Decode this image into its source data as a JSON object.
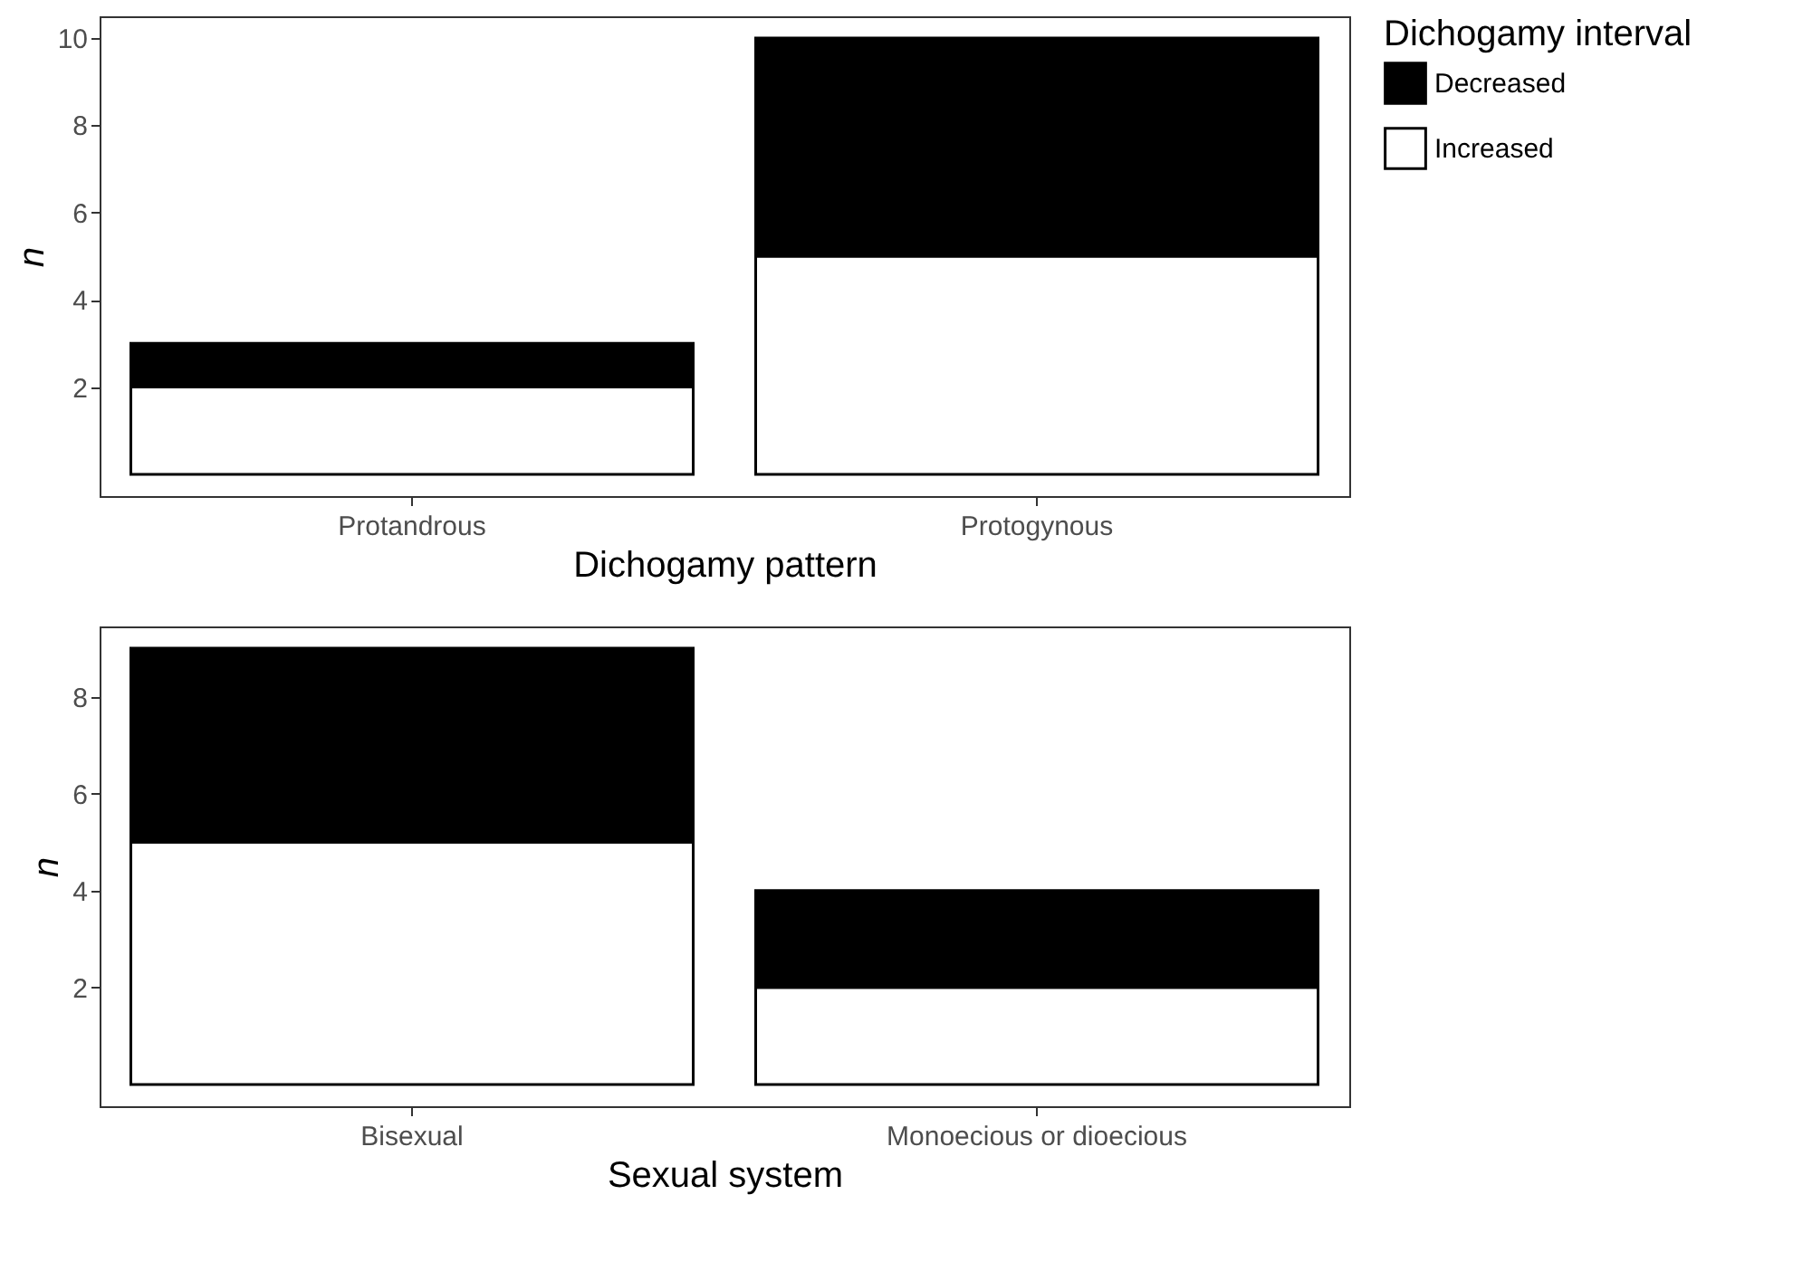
{
  "chart_data": [
    {
      "type": "bar",
      "xlabel": "Dichogamy pattern",
      "ylabel": "n",
      "legend_title": "Dichogamy interval",
      "categories": [
        "Protandrous",
        "Protogynous"
      ],
      "stacked": true,
      "series": [
        {
          "name": "Increased",
          "color": "#ffffff",
          "values": [
            2,
            5
          ]
        },
        {
          "name": "Decreased",
          "color": "#000000",
          "values": [
            1,
            5
          ]
        }
      ],
      "ylim": [
        -0.5,
        10.5
      ],
      "yticks": [
        2,
        4,
        6,
        8,
        10
      ],
      "grid": false,
      "legend": "right"
    },
    {
      "type": "bar",
      "xlabel": "Sexual system",
      "ylabel": "n",
      "categories": [
        "Bisexual",
        "Monoecious or dioecious"
      ],
      "stacked": true,
      "series": [
        {
          "name": "Increased",
          "color": "#ffffff",
          "values": [
            5,
            2
          ]
        },
        {
          "name": "Decreased",
          "color": "#000000",
          "values": [
            4,
            2
          ]
        }
      ],
      "ylim": [
        -0.45,
        9.45
      ],
      "yticks": [
        2,
        4,
        6,
        8
      ],
      "grid": false
    }
  ]
}
